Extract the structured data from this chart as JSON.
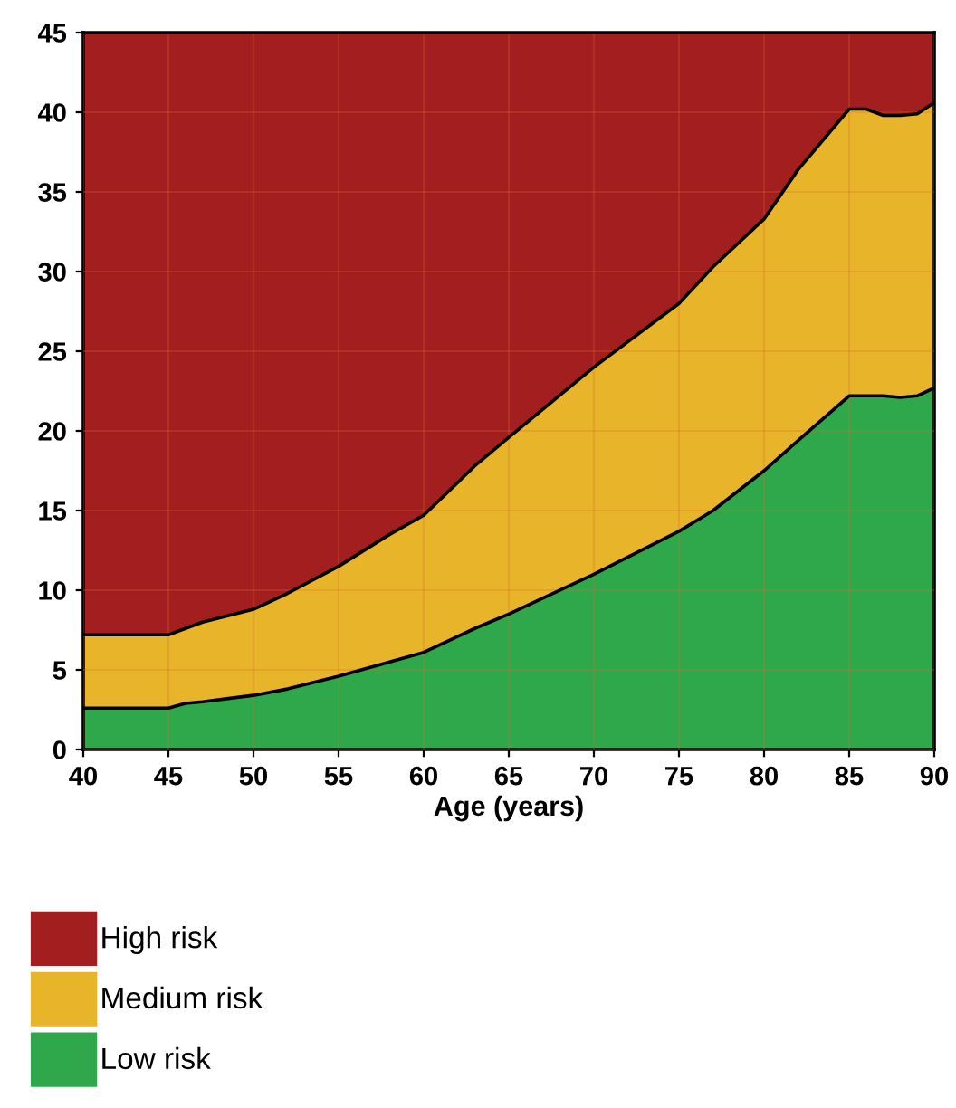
{
  "chart_data": {
    "type": "area",
    "stacked": true,
    "xlabel": "Age (years)",
    "x": [
      40,
      45,
      46,
      47,
      50,
      52,
      55,
      58,
      60,
      63,
      65,
      70,
      75,
      77,
      80,
      82,
      85,
      86,
      87,
      88,
      89,
      90
    ],
    "series": [
      {
        "name": "Low risk",
        "color": "#2ea84a",
        "values": [
          2.6,
          2.6,
          2.9,
          3.0,
          3.4,
          3.8,
          4.6,
          5.5,
          6.1,
          7.6,
          8.5,
          11.0,
          13.7,
          15.0,
          17.5,
          19.4,
          22.2,
          22.2,
          22.2,
          22.1,
          22.2,
          22.7
        ]
      },
      {
        "name": "Medium risk",
        "color": "#e8b42a",
        "values": [
          4.6,
          4.6,
          4.7,
          5.0,
          5.4,
          6.0,
          6.9,
          8.0,
          8.6,
          10.2,
          11.1,
          13.0,
          14.3,
          15.3,
          15.8,
          17.0,
          18.0,
          18.0,
          17.6,
          17.7,
          17.7,
          17.9
        ]
      },
      {
        "name": "High risk",
        "color": "#a31e1e",
        "values": [
          37.8,
          37.8,
          37.4,
          37.0,
          36.2,
          35.2,
          33.5,
          31.5,
          30.3,
          27.2,
          25.4,
          21.0,
          17.0,
          14.7,
          11.7,
          8.6,
          4.8,
          4.8,
          5.2,
          5.2,
          5.1,
          4.4
        ]
      }
    ],
    "xlim": [
      40,
      90
    ],
    "xticks": [
      40,
      45,
      50,
      55,
      60,
      65,
      70,
      75,
      80,
      85,
      90
    ],
    "ylim": [
      0,
      45
    ],
    "yticks": [
      0,
      5,
      10,
      15,
      20,
      25,
      30,
      35,
      40,
      45
    ],
    "grid": true,
    "legend": "bottom left"
  }
}
